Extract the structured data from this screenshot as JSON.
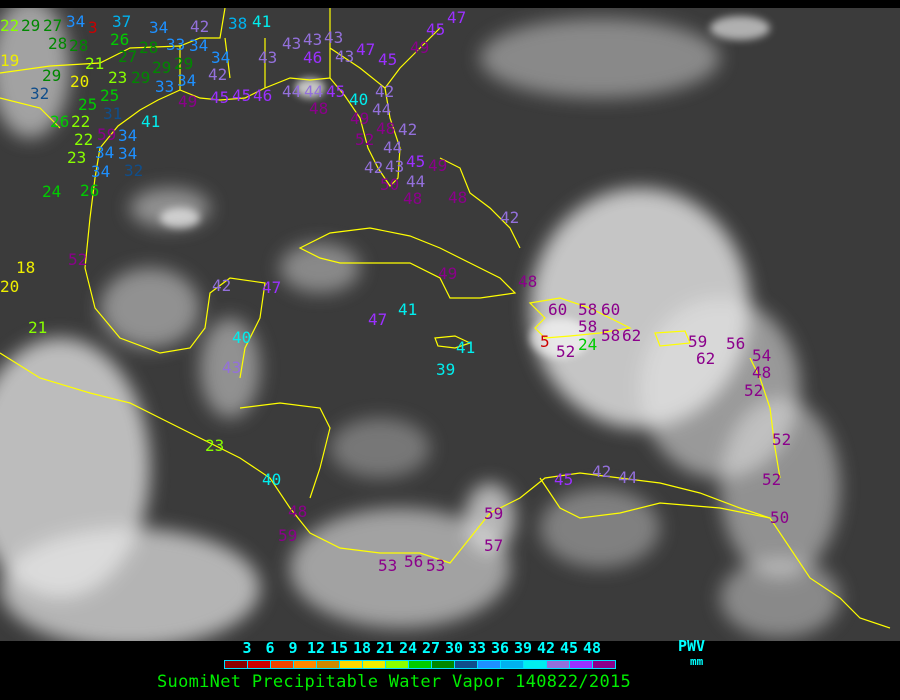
{
  "title": "SuomiNet Precipitable Water Vapor 140822/2015",
  "legend": {
    "unit_label": "PWV",
    "unit": "mm",
    "ticks": [
      "3",
      "6",
      "9",
      "12",
      "15",
      "18",
      "21",
      "24",
      "27",
      "30",
      "33",
      "36",
      "39",
      "42",
      "45",
      "48"
    ],
    "colors": [
      "#8b0000",
      "#cc0000",
      "#ee4400",
      "#ff8800",
      "#cc8800",
      "#ffd700",
      "#eeee00",
      "#88ff00",
      "#00cc00",
      "#008800",
      "#104e8b",
      "#1e90ff",
      "#00b2ee",
      "#00eeee",
      "#9370db",
      "#9b30ff",
      "#8b008b"
    ]
  },
  "map": {
    "background": "#3b3b3b",
    "coastline_color": "#ffff00",
    "station_values": [
      22,
      29,
      27,
      28,
      28,
      19,
      21,
      20,
      23,
      29,
      29,
      32,
      25,
      31,
      26,
      22,
      25,
      59,
      22,
      34,
      34,
      23,
      34,
      34,
      32,
      24,
      26,
      37,
      34,
      3,
      26,
      27,
      28,
      29,
      29,
      33,
      34,
      33,
      34,
      34,
      42,
      34,
      42,
      49,
      45,
      45,
      46,
      41,
      38,
      41,
      43,
      43,
      43,
      46,
      43,
      44,
      44,
      45,
      48,
      43,
      47,
      45,
      49,
      45,
      47,
      42,
      40,
      49,
      44,
      48,
      42,
      52,
      44,
      43,
      45,
      42,
      44,
      49,
      50,
      48,
      48,
      42,
      18,
      20,
      21,
      52,
      42,
      47,
      49,
      48,
      41,
      47,
      40,
      43,
      41,
      39,
      60,
      58,
      60,
      58,
      24,
      58,
      62,
      5,
      52,
      59,
      62,
      56,
      54,
      48,
      52,
      52,
      52,
      50,
      23,
      40,
      48,
      59,
      45,
      42,
      44,
      59,
      57,
      53,
      56,
      53
    ]
  }
}
